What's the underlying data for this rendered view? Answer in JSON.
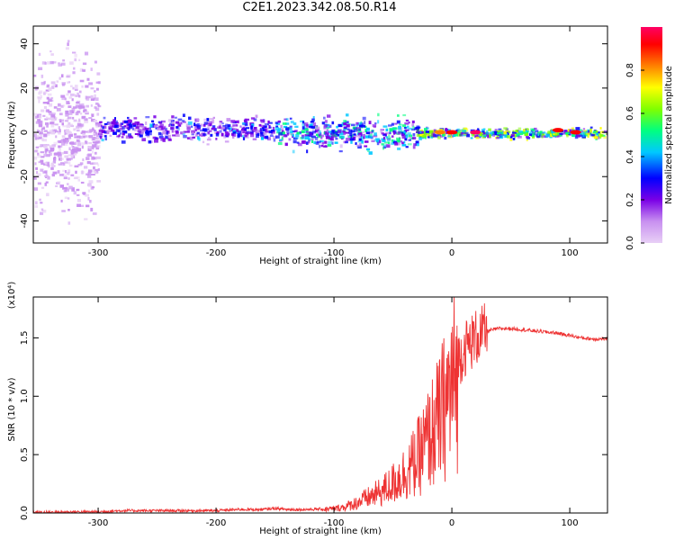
{
  "title": "C2E1.2023.342.08.50.R14",
  "chart_data": [
    {
      "type": "heatmap",
      "title": "C2E1.2023.342.08.50.R14",
      "xlabel": "Height of straight line (km)",
      "ylabel": "Frequency (Hz)",
      "xlim": [
        -355,
        132
      ],
      "ylim": [
        -50,
        48
      ],
      "xticks": [
        -300,
        -200,
        -100,
        0,
        100
      ],
      "xtick_labels": [
        "-300",
        "-200",
        "-100",
        "0",
        "100"
      ],
      "yticks": [
        -40,
        -20,
        0,
        20,
        40
      ],
      "ytick_labels": [
        "-40",
        "-20",
        "0",
        "20",
        "40"
      ],
      "colorbar": {
        "label": "Normalized spectral amplitude",
        "range": [
          0,
          1
        ],
        "ticks": [
          0.0,
          0.2,
          0.4,
          0.6,
          0.8
        ],
        "tick_labels": [
          "0.0",
          "0.2",
          "0.4",
          "0.6",
          "0.8"
        ],
        "colormap": "rainbow",
        "colors": [
          "#e8d0f6",
          "#c890f0",
          "#7a00e6",
          "#0000ff",
          "#00c8ff",
          "#00ff80",
          "#80ff00",
          "#ffff00",
          "#ff8000",
          "#ff0000",
          "#ff0064"
        ]
      },
      "bands": [
        {
          "x_range": [
            -355,
            -300
          ],
          "center_hz": 0,
          "spread_hz": 48,
          "level": 0.1,
          "note": "scattered faint points"
        },
        {
          "x_range": [
            -300,
            -150
          ],
          "center_hz": 2,
          "spread_hz": 8,
          "level": 0.3
        },
        {
          "x_range": [
            -150,
            -30
          ],
          "center_hz": 0,
          "spread_hz": 10,
          "level": 0.45
        },
        {
          "x_range": [
            -30,
            132
          ],
          "center_hz": 0,
          "spread_hz": 3,
          "level": 0.6
        }
      ],
      "hotspots": [
        {
          "x": 20,
          "y": 0,
          "level": 0.95
        },
        {
          "x": 90,
          "y": 1,
          "level": 0.9
        },
        {
          "x": 105,
          "y": 0,
          "level": 0.9
        },
        {
          "x": 0,
          "y": 0,
          "level": 0.85
        },
        {
          "x": -10,
          "y": 0,
          "level": 0.8
        }
      ]
    },
    {
      "type": "line",
      "title": "",
      "xlabel": "Height of straight line (km)",
      "ylabel": "SNR (10 * v/v)",
      "multiplier": "(x10⁴)",
      "xlim": [
        -355,
        132
      ],
      "ylim": [
        0,
        1.85
      ],
      "xticks": [
        -300,
        -200,
        -100,
        0,
        100
      ],
      "xtick_labels": [
        "-300",
        "-200",
        "-100",
        "0",
        "100"
      ],
      "yticks": [
        0.0,
        0.5,
        1.0,
        1.5
      ],
      "ytick_labels": [
        "0.0",
        "0.5",
        "1.0",
        "1.5"
      ],
      "series": [
        {
          "name": "",
          "color": "#ee3333",
          "x": [
            -355,
            -320,
            -300,
            -280,
            -250,
            -220,
            -200,
            -180,
            -160,
            -150,
            -140,
            -120,
            -100,
            -90,
            -80,
            -70,
            -60,
            -50,
            -40,
            -30,
            -20,
            -10,
            0,
            10,
            20,
            30,
            40,
            50,
            60,
            70,
            80,
            90,
            100,
            110,
            120,
            132
          ],
          "y": [
            0.005,
            0.01,
            0.01,
            0.02,
            0.02,
            0.02,
            0.02,
            0.03,
            0.03,
            0.04,
            0.03,
            0.03,
            0.04,
            0.06,
            0.1,
            0.15,
            0.2,
            0.28,
            0.38,
            0.5,
            0.7,
            0.9,
            1.2,
            1.4,
            1.5,
            1.56,
            1.58,
            1.58,
            1.57,
            1.56,
            1.55,
            1.54,
            1.52,
            1.5,
            1.49,
            1.49
          ]
        }
      ]
    }
  ]
}
